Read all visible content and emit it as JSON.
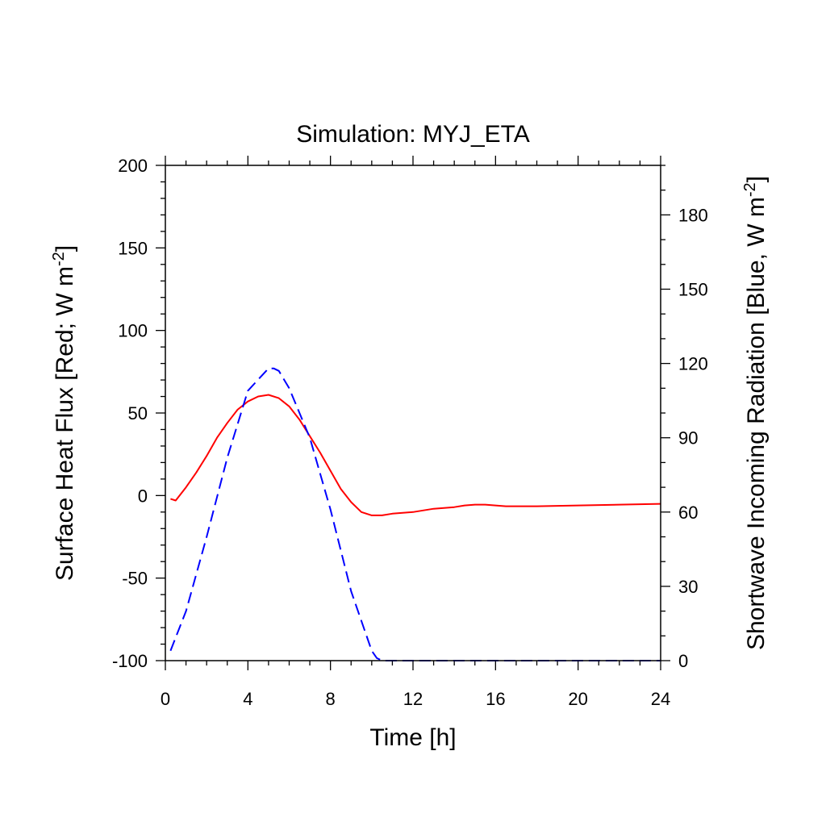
{
  "chart_data": {
    "type": "line",
    "title": "Simulation: MYJ_ETA",
    "xlabel": "Time [h]",
    "ylabel_left": "Surface Heat Flux [Red; W m",
    "ylabel_left_sup": "-2",
    "ylabel_left_end": "]",
    "ylabel_right": "Shortwave Incoming Radiation [Blue, W m",
    "ylabel_right_sup": "-2",
    "ylabel_right_end": "]",
    "xlim": [
      0,
      24
    ],
    "ylim_left": [
      -100,
      200
    ],
    "ylim_right": [
      0,
      200
    ],
    "x_ticks": [
      0,
      4,
      8,
      12,
      16,
      20,
      24
    ],
    "y_left_ticks": [
      -100,
      -50,
      0,
      50,
      100,
      150,
      200
    ],
    "y_right_ticks": [
      0,
      30,
      60,
      90,
      120,
      150,
      180
    ],
    "grid": false,
    "series": [
      {
        "axis": "left",
        "color": "#ff0000",
        "style": "solid",
        "x": [
          0.25,
          0.5,
          1,
          1.5,
          2,
          2.5,
          3,
          3.5,
          4,
          4.5,
          5,
          5.5,
          6,
          6.5,
          7,
          7.5,
          8,
          8.5,
          9,
          9.5,
          10,
          10.5,
          11,
          12,
          13,
          14,
          14.5,
          15,
          15.5,
          16,
          16.5,
          18,
          20,
          22,
          24
        ],
        "y": [
          -2,
          -3,
          5,
          14,
          24,
          35,
          44,
          52,
          57,
          60,
          61,
          59,
          54,
          46,
          36,
          26,
          15,
          4,
          -4,
          -10,
          -12,
          -12,
          -11,
          -10,
          -8,
          -7,
          -6,
          -5.5,
          -5.5,
          -6,
          -6.5,
          -6.5,
          -6,
          -5.5,
          -5
        ]
      },
      {
        "axis": "right",
        "color": "#0000ff",
        "style": "dashed",
        "x": [
          0.25,
          1,
          2,
          3,
          4,
          5,
          5.25,
          5.5,
          6,
          7,
          8,
          9,
          10,
          10.25,
          10.5,
          12,
          16,
          20,
          24
        ],
        "y": [
          4,
          20,
          50,
          82,
          109,
          118,
          118,
          117,
          110,
          90,
          61,
          28,
          4,
          1,
          0,
          0,
          0,
          0,
          0
        ]
      }
    ]
  }
}
